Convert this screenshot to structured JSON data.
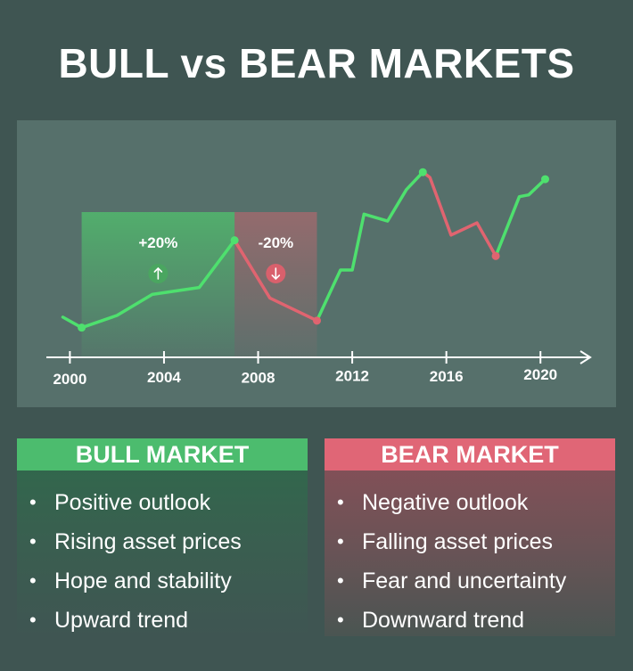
{
  "title": "BULL vs BEAR MARKETS",
  "chart_data": {
    "type": "line",
    "xlim": [
      1999.0,
      2022.0
    ],
    "ylim": [
      0,
      100
    ],
    "x_ticks": [
      2000,
      2004,
      2008,
      2012,
      2016,
      2020
    ],
    "points": [
      {
        "x": 1999.7,
        "y": 23
      },
      {
        "x": 2000.5,
        "y": 17
      },
      {
        "x": 2002.0,
        "y": 24
      },
      {
        "x": 2003.5,
        "y": 36
      },
      {
        "x": 2005.5,
        "y": 40
      },
      {
        "x": 2007.0,
        "y": 67
      },
      {
        "x": 2008.5,
        "y": 34
      },
      {
        "x": 2010.5,
        "y": 21
      },
      {
        "x": 2011.5,
        "y": 50
      },
      {
        "x": 2012.0,
        "y": 50
      },
      {
        "x": 2012.5,
        "y": 82
      },
      {
        "x": 2013.5,
        "y": 78
      },
      {
        "x": 2014.3,
        "y": 96
      },
      {
        "x": 2015.0,
        "y": 106
      },
      {
        "x": 2015.3,
        "y": 103
      },
      {
        "x": 2016.2,
        "y": 70
      },
      {
        "x": 2017.3,
        "y": 77
      },
      {
        "x": 2018.1,
        "y": 58
      },
      {
        "x": 2019.1,
        "y": 92
      },
      {
        "x": 2019.5,
        "y": 93
      },
      {
        "x": 2020.2,
        "y": 102
      }
    ],
    "segments": [
      {
        "trend": "bull",
        "from": 0,
        "to": 5
      },
      {
        "trend": "bear",
        "from": 5,
        "to": 7
      },
      {
        "trend": "bull",
        "from": 7,
        "to": 13
      },
      {
        "trend": "bear",
        "from": 13,
        "to": 17
      },
      {
        "trend": "bull",
        "from": 17,
        "to": 20
      }
    ],
    "annotations": [
      {
        "trend": "bull",
        "label": "+20%",
        "x_from": 2000.5,
        "x_to": 2007.0
      },
      {
        "trend": "bear",
        "label": "-20%",
        "x_from": 2007.0,
        "x_to": 2010.5
      }
    ],
    "colors": {
      "bull": "#4ee06e",
      "bear": "#e06470",
      "axis": "#ffffff"
    }
  },
  "bull": {
    "header": "BULL MARKET",
    "items": [
      "Positive  outlook",
      "Rising asset prices",
      "Hope and stability",
      "Upward trend"
    ]
  },
  "bear": {
    "header": "BEAR MARKET",
    "items": [
      "Negative outlook",
      "Falling asset prices",
      "Fear and uncertainty",
      "Downward trend"
    ]
  },
  "bullet": "•"
}
